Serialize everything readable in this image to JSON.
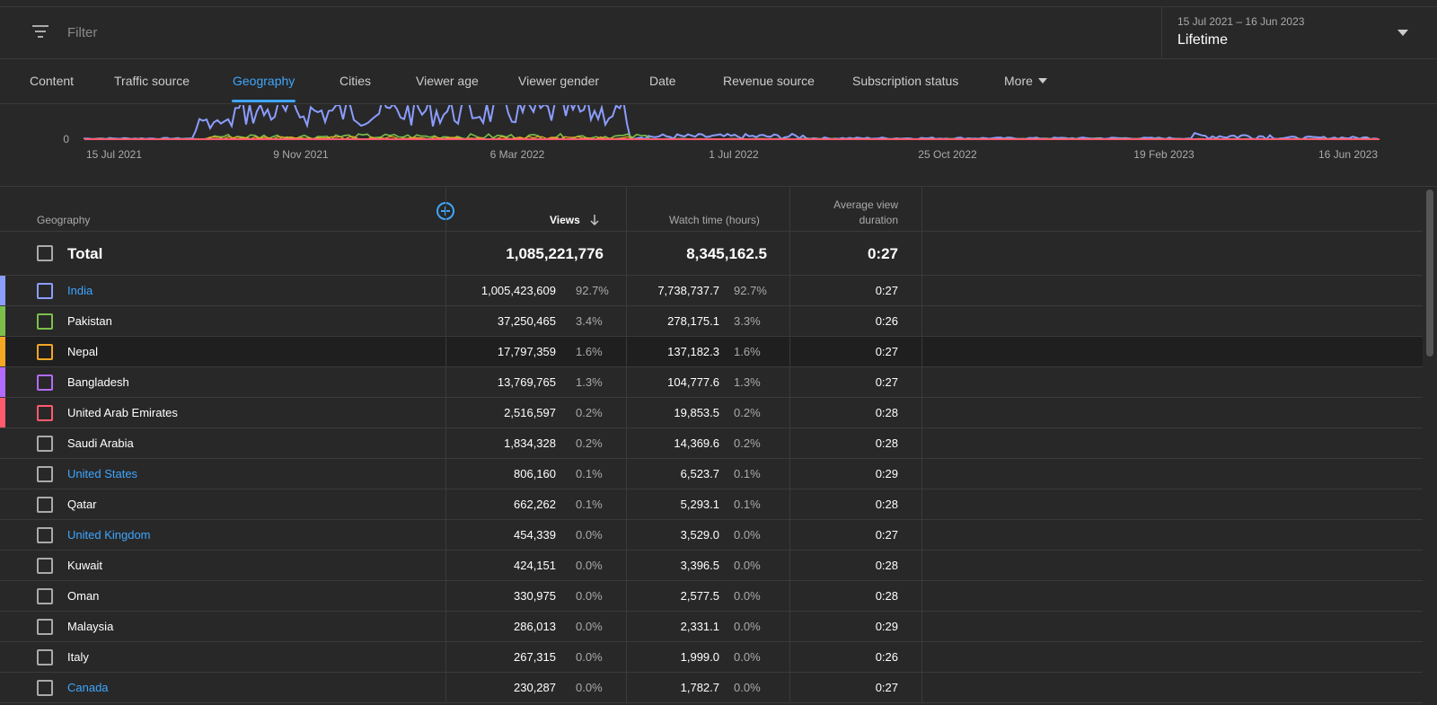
{
  "filter": {
    "placeholder": "Filter"
  },
  "date": {
    "range": "15 Jul 2021 – 16 Jun 2023",
    "label": "Lifetime"
  },
  "tabs": [
    {
      "label": "Content"
    },
    {
      "label": "Traffic source"
    },
    {
      "label": "Geography"
    },
    {
      "label": "Cities"
    },
    {
      "label": "Viewer age"
    },
    {
      "label": "Viewer gender"
    },
    {
      "label": "Date"
    },
    {
      "label": "Revenue source"
    },
    {
      "label": "Subscription status"
    },
    {
      "label": "More"
    }
  ],
  "active_tab": "Geography",
  "chart_data": {
    "type": "line",
    "y_tick": "0",
    "x_ticks": [
      "15 Jul 2021",
      "9 Nov 2021",
      "6 Mar 2022",
      "1 Jul 2022",
      "25 Oct 2022",
      "19 Feb 2023",
      "16 Jun 2023"
    ],
    "series_colors": [
      "#8b9dff",
      "#7cc04a",
      "#f5a623",
      "#b36bff",
      "#ff5a6e"
    ]
  },
  "table": {
    "headers": {
      "geography": "Geography",
      "views": "Views",
      "watch": "Watch time (hours)",
      "avg1": "Average view",
      "avg2": "duration"
    },
    "total": {
      "label": "Total",
      "views": "1,085,221,776",
      "watch": "8,345,162.5",
      "avg": "0:27"
    },
    "rows": [
      {
        "name": "India",
        "views": "1,005,423,609",
        "vpct": "92.7%",
        "watch": "7,738,737.7",
        "wpct": "92.7%",
        "avg": "0:27",
        "color": "#8b9dff",
        "link": true
      },
      {
        "name": "Pakistan",
        "views": "37,250,465",
        "vpct": "3.4%",
        "watch": "278,175.1",
        "wpct": "3.3%",
        "avg": "0:26",
        "color": "#7cc04a",
        "link": false
      },
      {
        "name": "Nepal",
        "views": "17,797,359",
        "vpct": "1.6%",
        "watch": "137,182.3",
        "wpct": "1.6%",
        "avg": "0:27",
        "color": "#f5a623",
        "link": false
      },
      {
        "name": "Bangladesh",
        "views": "13,769,765",
        "vpct": "1.3%",
        "watch": "104,777.6",
        "wpct": "1.3%",
        "avg": "0:27",
        "color": "#b36bff",
        "link": false
      },
      {
        "name": "United Arab Emirates",
        "views": "2,516,597",
        "vpct": "0.2%",
        "watch": "19,853.5",
        "wpct": "0.2%",
        "avg": "0:28",
        "color": "#ff5a6e",
        "link": false
      },
      {
        "name": "Saudi Arabia",
        "views": "1,834,328",
        "vpct": "0.2%",
        "watch": "14,369.6",
        "wpct": "0.2%",
        "avg": "0:28",
        "color": "",
        "link": false
      },
      {
        "name": "United States",
        "views": "806,160",
        "vpct": "0.1%",
        "watch": "6,523.7",
        "wpct": "0.1%",
        "avg": "0:29",
        "color": "",
        "link": true
      },
      {
        "name": "Qatar",
        "views": "662,262",
        "vpct": "0.1%",
        "watch": "5,293.1",
        "wpct": "0.1%",
        "avg": "0:28",
        "color": "",
        "link": false
      },
      {
        "name": "United Kingdom",
        "views": "454,339",
        "vpct": "0.0%",
        "watch": "3,529.0",
        "wpct": "0.0%",
        "avg": "0:27",
        "color": "",
        "link": true
      },
      {
        "name": "Kuwait",
        "views": "424,151",
        "vpct": "0.0%",
        "watch": "3,396.5",
        "wpct": "0.0%",
        "avg": "0:28",
        "color": "",
        "link": false
      },
      {
        "name": "Oman",
        "views": "330,975",
        "vpct": "0.0%",
        "watch": "2,577.5",
        "wpct": "0.0%",
        "avg": "0:28",
        "color": "",
        "link": false
      },
      {
        "name": "Malaysia",
        "views": "286,013",
        "vpct": "0.0%",
        "watch": "2,331.1",
        "wpct": "0.0%",
        "avg": "0:29",
        "color": "",
        "link": false
      },
      {
        "name": "Italy",
        "views": "267,315",
        "vpct": "0.0%",
        "watch": "1,999.0",
        "wpct": "0.0%",
        "avg": "0:26",
        "color": "",
        "link": false
      },
      {
        "name": "Canada",
        "views": "230,287",
        "vpct": "0.0%",
        "watch": "1,782.7",
        "wpct": "0.0%",
        "avg": "0:27",
        "color": "",
        "link": true
      }
    ]
  }
}
